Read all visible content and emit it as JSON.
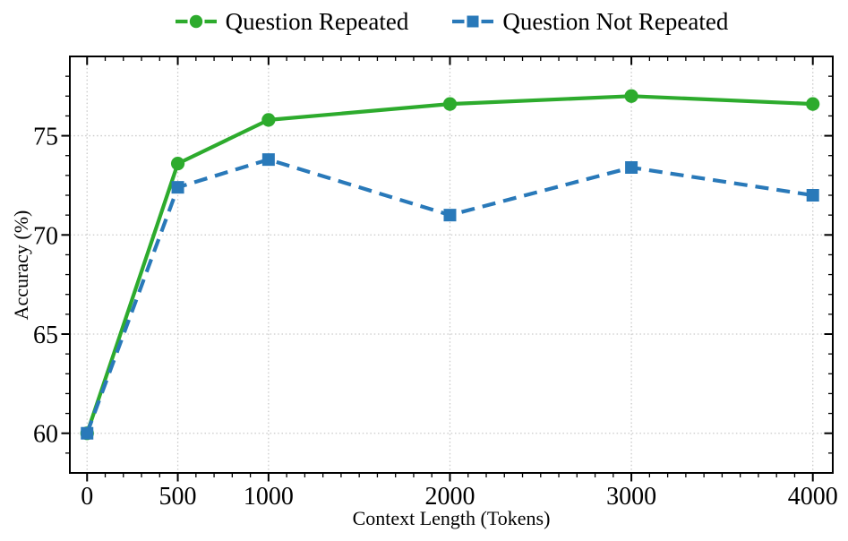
{
  "figure": {
    "background": "#ffffff"
  },
  "chart_data": {
    "type": "line",
    "title": "",
    "xlabel": "Context Length (Tokens)",
    "ylabel": "Accuracy (%)",
    "x": [
      0,
      500,
      1000,
      2000,
      3000,
      4000
    ],
    "xtick_labels": [
      "0",
      "500",
      "1000",
      "2000",
      "3000",
      "4000"
    ],
    "yticks": [
      60,
      65,
      70,
      75
    ],
    "ytick_labels": [
      "60",
      "65",
      "70",
      "75"
    ],
    "xlim": [
      -95,
      4110
    ],
    "ylim": [
      58,
      79
    ],
    "minor_x_step": 100,
    "minor_y_step": 1,
    "grid": true,
    "grid_style": "dotted",
    "grid_color": "#c9c9c9",
    "axis_color": "#000000",
    "legend_position": "top-center",
    "series": [
      {
        "name": "Question Repeated",
        "color": "#2dab2d",
        "marker": "circle",
        "linestyle": "solid",
        "values": [
          60.0,
          73.6,
          75.8,
          76.6,
          77.0,
          76.6
        ]
      },
      {
        "name": "Question Not Repeated",
        "color": "#2979b9",
        "marker": "square",
        "linestyle": "dashed",
        "values": [
          60.0,
          72.4,
          73.8,
          71.0,
          73.4,
          72.0
        ]
      }
    ]
  }
}
